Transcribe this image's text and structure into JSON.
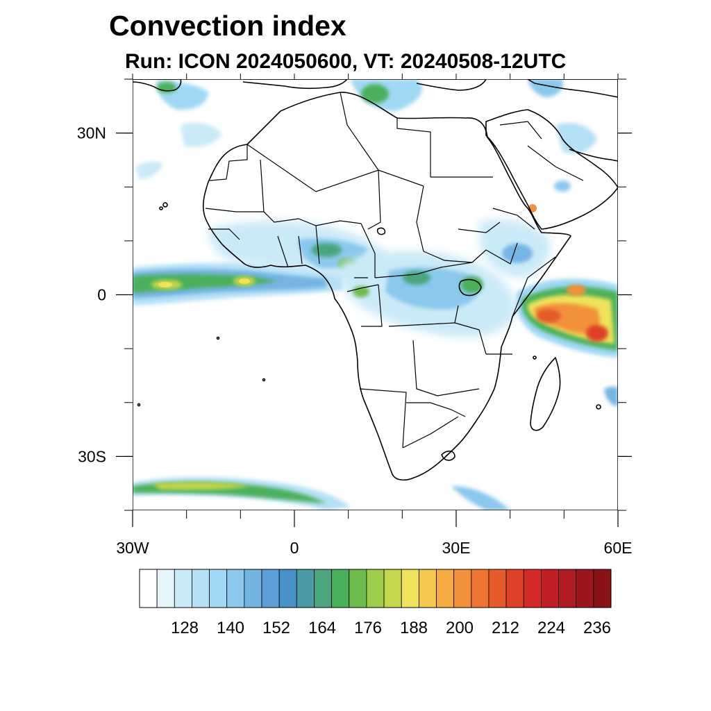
{
  "title": "Convection index",
  "subtitle": "Run: ICON 2024050600,  VT: 20240508-12UTC",
  "axes": {
    "x_ticks": [
      {
        "value": -30,
        "label": "30W"
      },
      {
        "value": 0,
        "label": "0"
      },
      {
        "value": 30,
        "label": "30E"
      },
      {
        "value": 60,
        "label": "60E"
      }
    ],
    "y_ticks": [
      {
        "value": 30,
        "label": "30N"
      },
      {
        "value": 0,
        "label": "0"
      },
      {
        "value": -30,
        "label": "30S"
      }
    ],
    "lon_range": [
      -30,
      60
    ],
    "lat_range": [
      -40,
      40
    ]
  },
  "colorbar": {
    "colors": [
      "#ffffff",
      "#e6f5fc",
      "#cbeaf8",
      "#b5e0f6",
      "#a0d8f4",
      "#8ac8ec",
      "#74b4e3",
      "#5e9fda",
      "#4a90c8",
      "#4a9aa8",
      "#4aa57f",
      "#4bb05b",
      "#6ebb4d",
      "#9ecd4c",
      "#c4d64c",
      "#eee35a",
      "#f5c84d",
      "#f6ab42",
      "#f3913b",
      "#ee7432",
      "#e55b2c",
      "#dd4128",
      "#d42a27",
      "#c21e25",
      "#b01a22",
      "#9c171d",
      "#8a1219"
    ],
    "labels": [
      "128",
      "140",
      "152",
      "164",
      "176",
      "188",
      "200",
      "212",
      "224",
      "236"
    ]
  },
  "chart_data": {
    "type": "heatmap",
    "title": "Convection index",
    "subtitle": "Run: ICON 2024050600,  VT: 20240508-12UTC",
    "lon_range": [
      -30,
      60
    ],
    "lat_range": [
      -40,
      40
    ],
    "colorbar_levels": [
      128,
      140,
      152,
      164,
      176,
      188,
      200,
      212,
      224,
      236
    ],
    "features": [
      {
        "region": "equatorial Atlantic band",
        "approx_lon": [
          -30,
          5
        ],
        "approx_lat": [
          0,
          5
        ],
        "index_range": [
          128,
          188
        ]
      },
      {
        "region": "West Africa / Gulf of Guinea",
        "approx_lon": [
          -15,
          10
        ],
        "approx_lat": [
          5,
          12
        ],
        "index_range": [
          128,
          176
        ]
      },
      {
        "region": "Central Africa / Lake Victoria",
        "approx_lon": [
          10,
          35
        ],
        "approx_lat": [
          -5,
          8
        ],
        "index_range": [
          128,
          200
        ]
      },
      {
        "region": "Western Indian Ocean",
        "approx_lon": [
          40,
          60
        ],
        "approx_lat": [
          -10,
          2
        ],
        "index_range": [
          152,
          224
        ]
      },
      {
        "region": "Southern Ocean band",
        "approx_lon": [
          -30,
          10
        ],
        "approx_lat": [
          -38,
          -34
        ],
        "index_range": [
          128,
          200
        ]
      }
    ]
  }
}
